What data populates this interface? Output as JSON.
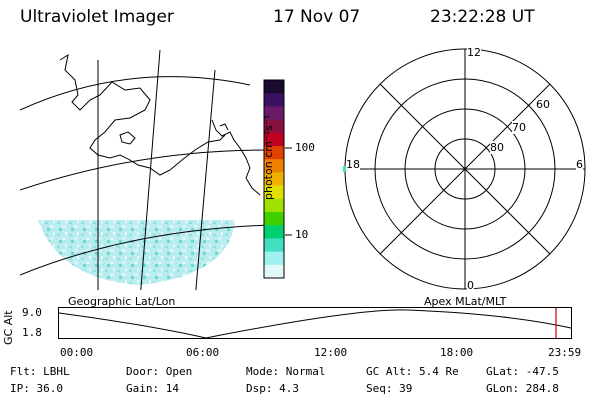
{
  "header": {
    "title": "Ultraviolet Imager",
    "date": "17 Nov 07",
    "time": "23:22:28 UT"
  },
  "colorbar": {
    "unit_label": "photon cm⁻²s⁻¹",
    "ticks": [
      "100",
      "10"
    ],
    "colors": [
      "#1a0a30",
      "#3a1060",
      "#6a1a6a",
      "#8a1040",
      "#c00020",
      "#e04000",
      "#f08000",
      "#f0b000",
      "#e0e000",
      "#a0e000",
      "#40d000",
      "#00d070",
      "#40e0c0",
      "#a0f0f0",
      "#e0f8f8"
    ]
  },
  "map": {
    "geo_label": "Geographic Lat/Lon",
    "apex_label": "Apex MLat/MLT",
    "auroral_fill_color": "#a8e8ea"
  },
  "polar": {
    "mlt_labels": {
      "top": "12",
      "left": "18",
      "right": "6",
      "bottom": "0"
    },
    "lat_labels": [
      "60",
      "70",
      "80"
    ]
  },
  "timeline": {
    "axis_title": "GC Alt",
    "y_ticks": [
      "9.0",
      "1.8"
    ],
    "x_ticks": [
      "00:00",
      "06:00",
      "12:00",
      "18:00",
      "23:59"
    ],
    "marker_color": "#cc0000"
  },
  "info": {
    "row1": [
      {
        "key": "flt",
        "text": "Flt: LBHL"
      },
      {
        "key": "door",
        "text": "Door: Open"
      },
      {
        "key": "mode",
        "text": "Mode: Normal"
      },
      {
        "key": "gcalt",
        "text": "GC Alt: 5.4 Re"
      },
      {
        "key": "glat",
        "text": "GLat: -47.5"
      }
    ],
    "row2": [
      {
        "key": "ip",
        "text": "IP: 36.0"
      },
      {
        "key": "gain",
        "text": "Gain: 14"
      },
      {
        "key": "dsp",
        "text": "Dsp:    4.3"
      },
      {
        "key": "seq",
        "text": "Seq: 39"
      },
      {
        "key": "glon",
        "text": "GLon: 284.8"
      }
    ]
  }
}
